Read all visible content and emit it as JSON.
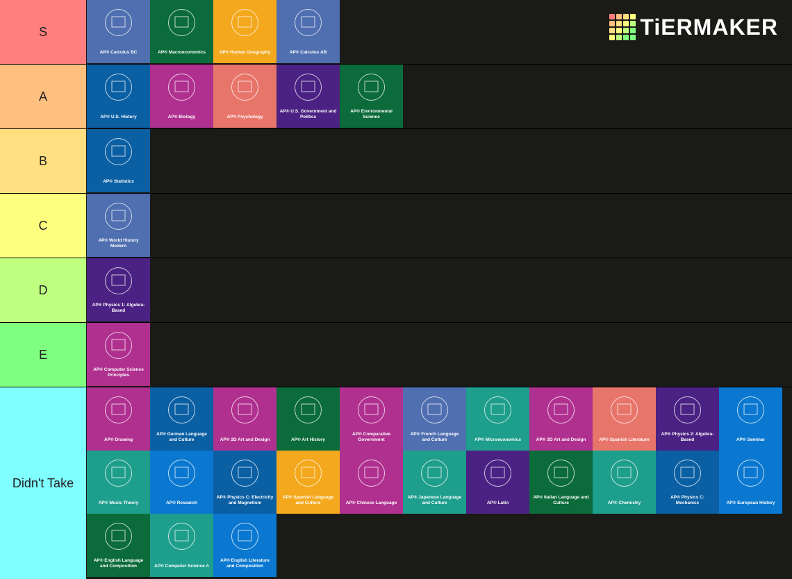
{
  "logo": "TiERMAKER",
  "tiers": [
    {
      "label": "S",
      "color": "#ff7f7f",
      "items": [
        {
          "name": "AP® Calculus BC",
          "color": "#4f6fb0"
        },
        {
          "name": "AP® Macroeconomics",
          "color": "#0b6b3a"
        },
        {
          "name": "AP® Human Geography",
          "color": "#f4a81d"
        },
        {
          "name": "AP® Calculus AB",
          "color": "#4f6fb0"
        }
      ]
    },
    {
      "label": "A",
      "color": "#ffbf7f",
      "items": [
        {
          "name": "AP® U.S. History",
          "color": "#0b5fa3"
        },
        {
          "name": "AP® Biology",
          "color": "#b0308f"
        },
        {
          "name": "AP® Psychology",
          "color": "#e8756a"
        },
        {
          "name": "AP® U.S. Government and Politics",
          "color": "#4b2283"
        },
        {
          "name": "AP® Environmental Science",
          "color": "#0b6b3a"
        }
      ]
    },
    {
      "label": "B",
      "color": "#ffdf7f",
      "items": [
        {
          "name": "AP® Statistics",
          "color": "#0b5fa3"
        }
      ]
    },
    {
      "label": "C",
      "color": "#ffff7f",
      "items": [
        {
          "name": "AP® World History Modern",
          "color": "#4f6fb0"
        }
      ]
    },
    {
      "label": "D",
      "color": "#bfff7f",
      "items": [
        {
          "name": "AP® Physics 1: Algebra-Based",
          "color": "#4b2283"
        }
      ]
    },
    {
      "label": "E",
      "color": "#7fff7f",
      "items": [
        {
          "name": "AP® Computer Science Principles",
          "color": "#b0308f"
        }
      ]
    },
    {
      "label": "Didn't Take",
      "color": "#7fffff",
      "items": [
        {
          "name": "AP® Drawing",
          "color": "#b0308f"
        },
        {
          "name": "AP® German Language and Culture",
          "color": "#0b5fa3"
        },
        {
          "name": "AP® 2D Art and Design",
          "color": "#b0308f"
        },
        {
          "name": "AP® Art History",
          "color": "#0b6b3a"
        },
        {
          "name": "AP® Comparative Government",
          "color": "#b0308f"
        },
        {
          "name": "AP® French Language and Culture",
          "color": "#4f6fb0"
        },
        {
          "name": "AP® Microeconomics",
          "color": "#1e9e8c"
        },
        {
          "name": "AP® 3D Art and Design",
          "color": "#b0308f"
        },
        {
          "name": "AP® Spanish Literature",
          "color": "#e8756a"
        },
        {
          "name": "AP® Physics 2: Algebra-Based",
          "color": "#4b2283"
        },
        {
          "name": "AP® Seminar",
          "color": "#0a78d0"
        },
        {
          "name": "AP® Music Theory",
          "color": "#1e9e8c"
        },
        {
          "name": "AP® Research",
          "color": "#0a78d0"
        },
        {
          "name": "AP® Physics C: Electricity and Magnetism",
          "color": "#0b5fa3"
        },
        {
          "name": "AP® Spanish Language and Culture",
          "color": "#f4a81d"
        },
        {
          "name": "AP® Chinese Language",
          "color": "#b0308f"
        },
        {
          "name": "AP® Japanese Language and Culture",
          "color": "#1e9e8c"
        },
        {
          "name": "AP® Latin",
          "color": "#4b2283"
        },
        {
          "name": "AP® Italian Language and Culture",
          "color": "#0b6b3a"
        },
        {
          "name": "AP® Chemistry",
          "color": "#1e9e8c"
        },
        {
          "name": "AP® Physics C: Mechanics",
          "color": "#0b5fa3"
        },
        {
          "name": "AP® European History",
          "color": "#0a78d0"
        },
        {
          "name": "AP® English Language and Composition",
          "color": "#0b6b3a"
        },
        {
          "name": "AP® Computer Science A",
          "color": "#1e9e8c"
        },
        {
          "name": "AP® English Literature and Composition",
          "color": "#0a78d0"
        }
      ]
    }
  ]
}
